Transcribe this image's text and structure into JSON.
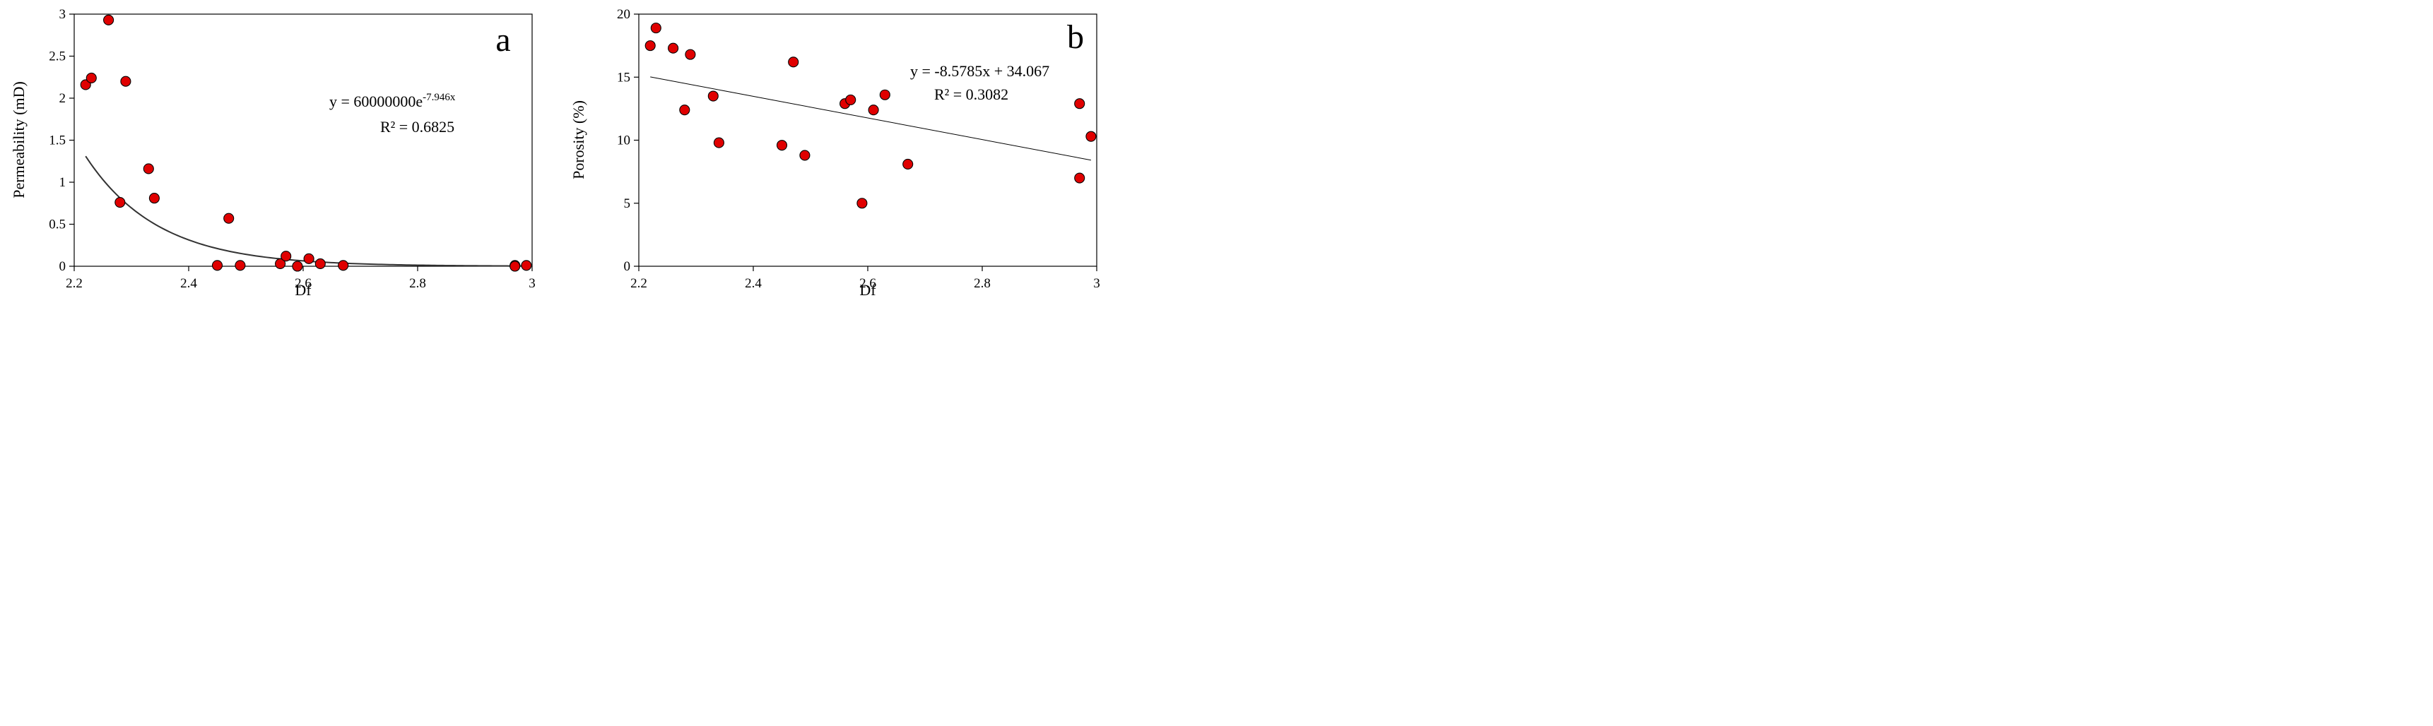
{
  "chart_data": [
    {
      "type": "scatter",
      "panel_label": "a",
      "xlabel": "Df",
      "ylabel": "Permeability (mD)",
      "xlim": [
        2.2,
        3.0
      ],
      "ylim": [
        0,
        3.0
      ],
      "xticks": [
        2.2,
        2.4,
        2.6,
        2.8,
        3.0
      ],
      "xtick_labels": [
        "2.2",
        "2.4",
        "2.6",
        "2.8",
        "3"
      ],
      "yticks": [
        0,
        0.5,
        1.0,
        1.5,
        2.0,
        2.5,
        3.0
      ],
      "ytick_labels": [
        "0",
        "0.5",
        "1",
        "1.5",
        "2",
        "2.5",
        "3"
      ],
      "grid": false,
      "trendline": {
        "type": "exponential",
        "a": 60000000,
        "b": -7.946,
        "equation_main": "y = 60000000e",
        "equation_exp": "-7.946x",
        "r2_label": "R² = 0.6825"
      },
      "points": [
        {
          "x": 2.22,
          "y": 2.16
        },
        {
          "x": 2.23,
          "y": 2.24
        },
        {
          "x": 2.26,
          "y": 2.93
        },
        {
          "x": 2.28,
          "y": 0.76
        },
        {
          "x": 2.29,
          "y": 2.2
        },
        {
          "x": 2.33,
          "y": 1.16
        },
        {
          "x": 2.34,
          "y": 0.81
        },
        {
          "x": 2.45,
          "y": 0.01
        },
        {
          "x": 2.47,
          "y": 0.57
        },
        {
          "x": 2.49,
          "y": 0.01
        },
        {
          "x": 2.56,
          "y": 0.03
        },
        {
          "x": 2.57,
          "y": 0.12
        },
        {
          "x": 2.59,
          "y": 0.0
        },
        {
          "x": 2.61,
          "y": 0.09
        },
        {
          "x": 2.63,
          "y": 0.03
        },
        {
          "x": 2.67,
          "y": 0.01
        },
        {
          "x": 2.97,
          "y": 0.01
        },
        {
          "x": 2.97,
          "y": 0.0
        },
        {
          "x": 2.99,
          "y": 0.01
        }
      ]
    },
    {
      "type": "scatter",
      "panel_label": "b",
      "xlabel": "Df",
      "ylabel": "Porosity (%)",
      "xlim": [
        2.2,
        3.0
      ],
      "ylim": [
        0,
        20
      ],
      "xticks": [
        2.2,
        2.4,
        2.6,
        2.8,
        3.0
      ],
      "xtick_labels": [
        "2.2",
        "2.4",
        "2.6",
        "2.8",
        "3"
      ],
      "yticks": [
        0,
        5,
        10,
        15,
        20
      ],
      "ytick_labels": [
        "0",
        "5",
        "10",
        "15",
        "20"
      ],
      "grid": false,
      "trendline": {
        "type": "linear",
        "slope": -8.5785,
        "intercept": 34.067,
        "x_range": [
          2.22,
          2.99
        ],
        "equation_label": "y = -8.5785x + 34.067",
        "r2_label": "R² = 0.3082"
      },
      "points": [
        {
          "x": 2.22,
          "y": 17.5
        },
        {
          "x": 2.23,
          "y": 18.9
        },
        {
          "x": 2.26,
          "y": 17.3
        },
        {
          "x": 2.28,
          "y": 12.4
        },
        {
          "x": 2.29,
          "y": 16.8
        },
        {
          "x": 2.33,
          "y": 13.5
        },
        {
          "x": 2.34,
          "y": 9.8
        },
        {
          "x": 2.45,
          "y": 9.6
        },
        {
          "x": 2.47,
          "y": 16.2
        },
        {
          "x": 2.49,
          "y": 8.8
        },
        {
          "x": 2.56,
          "y": 12.9
        },
        {
          "x": 2.57,
          "y": 13.2
        },
        {
          "x": 2.59,
          "y": 5.0
        },
        {
          "x": 2.61,
          "y": 12.4
        },
        {
          "x": 2.63,
          "y": 13.6
        },
        {
          "x": 2.67,
          "y": 8.1
        },
        {
          "x": 2.97,
          "y": 12.9
        },
        {
          "x": 2.97,
          "y": 7.0
        },
        {
          "x": 2.99,
          "y": 10.3
        }
      ]
    }
  ]
}
